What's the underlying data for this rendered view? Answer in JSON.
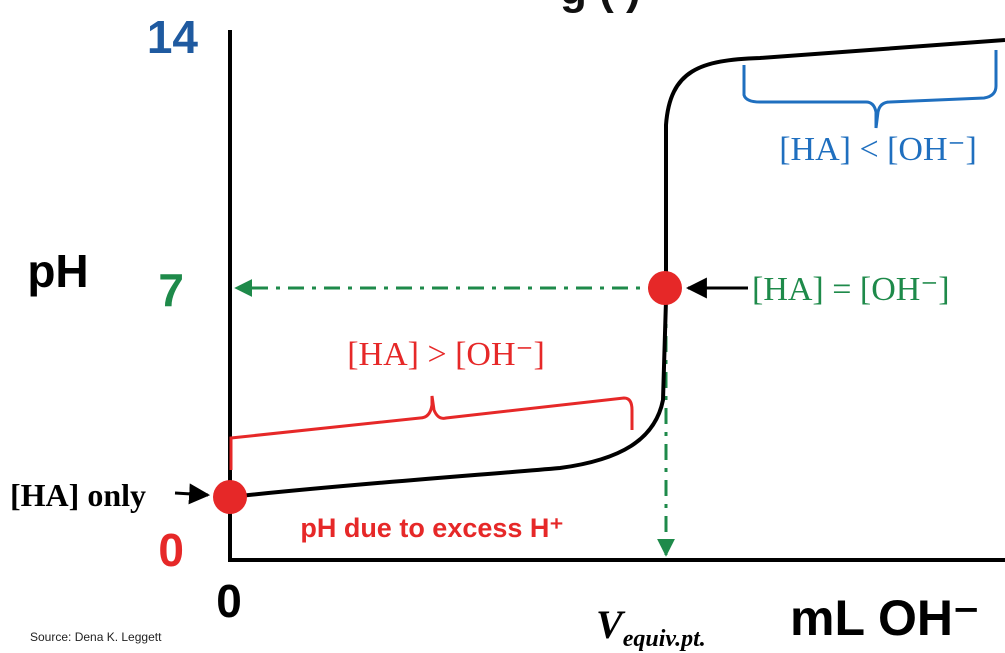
{
  "chart_data": {
    "type": "line",
    "title": "",
    "xlabel": "mL OH⁻",
    "ylabel": "pH",
    "ylim": [
      0,
      14
    ],
    "y_ticks": [
      {
        "value": 14,
        "label": "14",
        "color": "#1f5aa0"
      },
      {
        "value": 7,
        "label": "7",
        "color": "#1e8a4a"
      },
      {
        "value": 0,
        "label": "0",
        "color": "#e62828"
      }
    ],
    "x_ticks": [
      {
        "value": 0,
        "label": "0"
      }
    ],
    "series": [
      {
        "points": [
          [
            0,
            0.7
          ],
          [
            0.25,
            1.0
          ],
          [
            0.5,
            1.3
          ],
          [
            0.75,
            1.6
          ],
          [
            0.85,
            1.9
          ],
          [
            0.93,
            2.6
          ],
          [
            1.0,
            7.0
          ],
          [
            1.02,
            11.8
          ],
          [
            1.12,
            12.9
          ],
          [
            1.6,
            13.3
          ],
          [
            1.8,
            13.5
          ]
        ]
      }
    ],
    "markers": [
      {
        "x": 0,
        "y": 0.7,
        "color": "#e62828"
      },
      {
        "x": 1.0,
        "y": 7.0,
        "color": "#e62828"
      }
    ]
  },
  "labels": {
    "title_partial": "g (  )",
    "y_axis_label": "pH",
    "x_origin": "0",
    "v_equiv": "V",
    "v_equiv_sub": "equiv.pt.",
    "x_axis_label": "mL OH⁻",
    "ha_only": "[HA] only",
    "excess_h": "pH due to excess H⁺",
    "ha_greater": "[HA] > [OH⁻]",
    "ha_equal": "[HA] = [OH⁻]",
    "ha_less": "[HA] < [OH⁻]",
    "source": "Source:  Dena K. Leggett"
  },
  "colors": {
    "red": "#e62828",
    "green": "#1e8a4a",
    "blue": "#1f6fbf",
    "dark_blue": "#1f5aa0",
    "black": "#000000"
  }
}
